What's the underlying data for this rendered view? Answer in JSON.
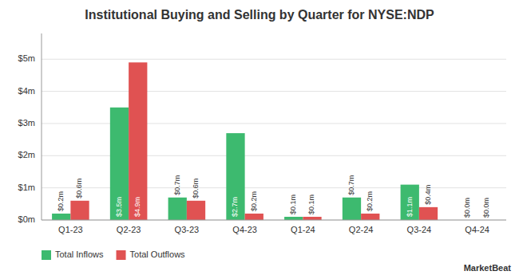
{
  "chart_data": {
    "type": "bar",
    "title": "Institutional Buying and Selling by Quarter for NYSE:NDP",
    "categories": [
      "Q1-23",
      "Q2-23",
      "Q3-23",
      "Q4-23",
      "Q1-24",
      "Q2-24",
      "Q3-24",
      "Q4-24"
    ],
    "series": [
      {
        "name": "Total Inflows",
        "color": "#3dba6f",
        "values": [
          0.2,
          3.5,
          0.7,
          2.7,
          0.1,
          0.7,
          1.1,
          0.0
        ],
        "value_labels": [
          "$0.2m",
          "$3.5m",
          "$0.7m",
          "$2.7m",
          "$0.1m",
          "$0.7m",
          "$1.1m",
          "$0.0m"
        ]
      },
      {
        "name": "Total Outflows",
        "color": "#e05252",
        "values": [
          0.6,
          4.9,
          0.6,
          0.2,
          0.1,
          0.2,
          0.4,
          0.0
        ],
        "value_labels": [
          "$0.6m",
          "$4.9m",
          "$0.6m",
          "$0.2m",
          "$0.1m",
          "$0.2m",
          "$0.4m",
          "$0.0m"
        ]
      }
    ],
    "ylim": [
      0,
      5.8
    ],
    "yticks": [
      {
        "value": 0,
        "label": "$0m"
      },
      {
        "value": 1,
        "label": "$1m"
      },
      {
        "value": 2,
        "label": "$2m"
      },
      {
        "value": 3,
        "label": "$3m"
      },
      {
        "value": 4,
        "label": "$4m"
      },
      {
        "value": 5,
        "label": "$5m"
      }
    ],
    "grid": true,
    "legend": "lower left",
    "data_labels": true,
    "annotations": [
      "MarketBeat"
    ]
  }
}
